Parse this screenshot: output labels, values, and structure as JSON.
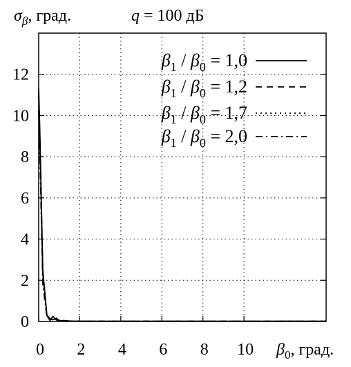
{
  "chart_data": {
    "type": "line",
    "title_left": {
      "symbol": "σ",
      "sub": "β",
      "text": ", град."
    },
    "title_right": {
      "q": "q",
      "rest": " = 100 дБ"
    },
    "xlabel": {
      "symbol": "β",
      "sub": "0",
      "text": ", град."
    },
    "xlim": [
      0,
      14
    ],
    "ylim": [
      0,
      14
    ],
    "xticks": [
      0,
      2,
      4,
      6,
      8,
      10
    ],
    "yticks": [
      0,
      2,
      4,
      6,
      8,
      10,
      12
    ],
    "grid": true,
    "legend_position": "top-right",
    "series": [
      {
        "name": "β1 / β0 = 1,0",
        "legend": {
          "a": "β",
          "a_sub": "1",
          "mid": " / ",
          "b": "β",
          "b_sub": "0",
          "rest": " = 1,0"
        },
        "style": "solid",
        "x": [
          0,
          0.05,
          0.2,
          0.4,
          0.55,
          0.7,
          0.85,
          1.0,
          1.2,
          1.5,
          2,
          4,
          6,
          8,
          10,
          12,
          14
        ],
        "y": [
          11.3,
          9.5,
          2.5,
          0.3,
          0.05,
          0.25,
          0.08,
          0.02,
          0.05,
          0.02,
          0.01,
          0.01,
          0.01,
          0.01,
          0.01,
          0.01,
          0.01
        ]
      },
      {
        "name": "β1 / β0 = 1,2",
        "legend": {
          "a": "β",
          "a_sub": "1",
          "mid": " / ",
          "b": "β",
          "b_sub": "0",
          "rest": " = 1,2"
        },
        "style": "dashed",
        "x": [
          0,
          0.05,
          0.2,
          0.4,
          0.6,
          0.8,
          1.0,
          1.3,
          2,
          4,
          6,
          8,
          10,
          12,
          14
        ],
        "y": [
          11.0,
          9.3,
          2.3,
          0.3,
          0.1,
          0.2,
          0.05,
          0.03,
          0.01,
          0.01,
          0.01,
          0.01,
          0.01,
          0.01,
          0.01
        ]
      },
      {
        "name": "β1 / β0 = 1,7",
        "legend": {
          "a": "β",
          "a_sub": "1",
          "mid": " / ",
          "b": "β",
          "b_sub": "0",
          "rest": " = 1,7"
        },
        "style": "dotted",
        "x": [
          0,
          0.05,
          0.2,
          0.4,
          0.6,
          0.8,
          1.0,
          1.3,
          2,
          4,
          6,
          8,
          10,
          12,
          14
        ],
        "y": [
          10.5,
          8.8,
          2.0,
          0.25,
          0.08,
          0.15,
          0.04,
          0.02,
          0.01,
          0.01,
          0.01,
          0.01,
          0.01,
          0.01,
          0.01
        ]
      },
      {
        "name": "β1 / β0 = 2,0",
        "legend": {
          "a": "β",
          "a_sub": "1",
          "mid": " / ",
          "b": "β",
          "b_sub": "0",
          "rest": " = 2,0"
        },
        "style": "dashdot",
        "x": [
          0,
          0.05,
          0.2,
          0.4,
          0.6,
          0.8,
          1.0,
          1.3,
          2,
          4,
          6,
          8,
          10,
          12,
          14
        ],
        "y": [
          10.2,
          8.5,
          1.8,
          0.2,
          0.06,
          0.12,
          0.03,
          0.02,
          0.01,
          0.01,
          0.01,
          0.01,
          0.01,
          0.01,
          0.01
        ]
      }
    ]
  }
}
